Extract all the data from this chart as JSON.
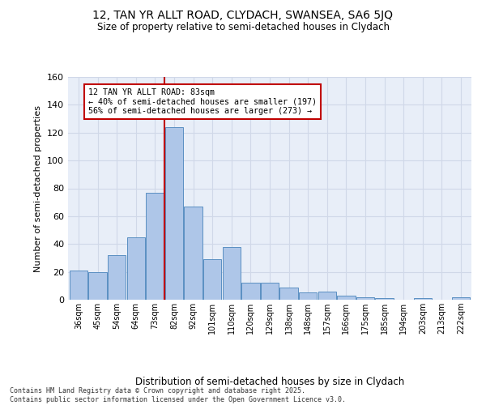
{
  "title_line1": "12, TAN YR ALLT ROAD, CLYDACH, SWANSEA, SA6 5JQ",
  "title_line2": "Size of property relative to semi-detached houses in Clydach",
  "xlabel": "Distribution of semi-detached houses by size in Clydach",
  "ylabel": "Number of semi-detached properties",
  "categories": [
    "36sqm",
    "45sqm",
    "54sqm",
    "64sqm",
    "73sqm",
    "82sqm",
    "92sqm",
    "101sqm",
    "110sqm",
    "120sqm",
    "129sqm",
    "138sqm",
    "148sqm",
    "157sqm",
    "166sqm",
    "175sqm",
    "185sqm",
    "194sqm",
    "203sqm",
    "213sqm",
    "222sqm"
  ],
  "values": [
    21,
    20,
    32,
    45,
    77,
    124,
    67,
    29,
    38,
    12,
    12,
    9,
    5,
    6,
    3,
    2,
    1,
    0,
    1,
    0,
    2
  ],
  "bar_color": "#aec6e8",
  "bar_edge_color": "#5a8fc2",
  "highlight_color": "#c00000",
  "annotation_line1": "12 TAN YR ALLT ROAD: 83sqm",
  "annotation_line2": "← 40% of semi-detached houses are smaller (197)",
  "annotation_line3": "56% of semi-detached houses are larger (273) →",
  "annotation_box_color": "#c00000",
  "ylim": [
    0,
    160
  ],
  "yticks": [
    0,
    20,
    40,
    60,
    80,
    100,
    120,
    140,
    160
  ],
  "grid_color": "#d0d8e8",
  "background_color": "#e8eef8",
  "footer_text": "Contains HM Land Registry data © Crown copyright and database right 2025.\nContains public sector information licensed under the Open Government Licence v3.0.",
  "red_line_x": 5.0
}
